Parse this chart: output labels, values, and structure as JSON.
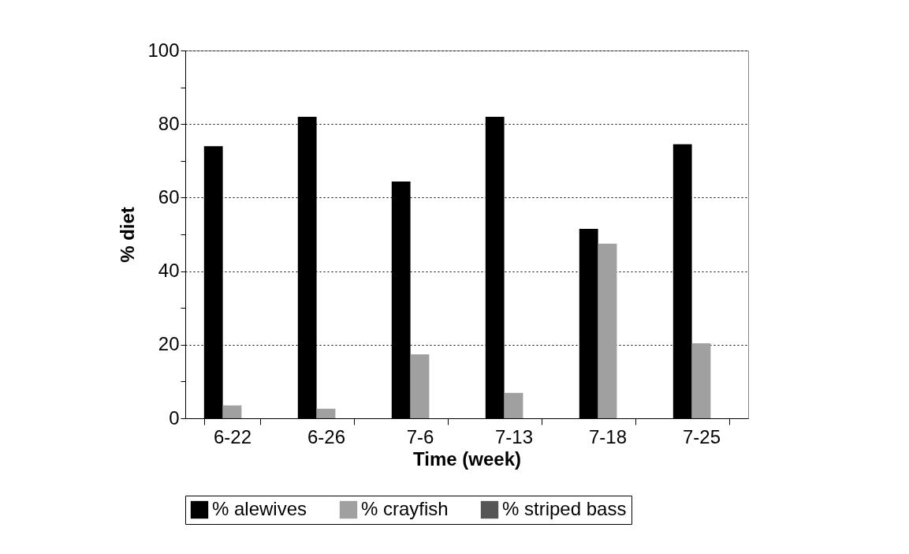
{
  "chart_data": {
    "type": "bar",
    "xlabel": "Time (week)",
    "ylabel": "% diet",
    "categories": [
      "6-22",
      "6-26",
      "7-6",
      "7-13",
      "7-18",
      "7-25"
    ],
    "series": [
      {
        "name": "% alewives",
        "color": "#000000",
        "values": [
          74,
          82,
          64.4,
          82,
          51.5,
          74.5
        ]
      },
      {
        "name": "% crayfish",
        "color": "#a0a0a0",
        "values": [
          3.5,
          2.6,
          17.4,
          6.9,
          47.5,
          20.4
        ]
      },
      {
        "name": "% striped bass",
        "color": "#555555",
        "values": [
          0,
          0,
          0,
          0,
          0,
          0
        ]
      }
    ],
    "ylim": [
      0,
      100
    ],
    "yticks": [
      0,
      {
        "value": 10,
        "label": null
      },
      20,
      {
        "value": 30,
        "label": null
      },
      40,
      {
        "value": 50,
        "label": null
      },
      60,
      {
        "value": 70,
        "label": null
      },
      80,
      {
        "value": 90,
        "label": null
      },
      100
    ],
    "grid": "y",
    "legend": "bottom"
  }
}
